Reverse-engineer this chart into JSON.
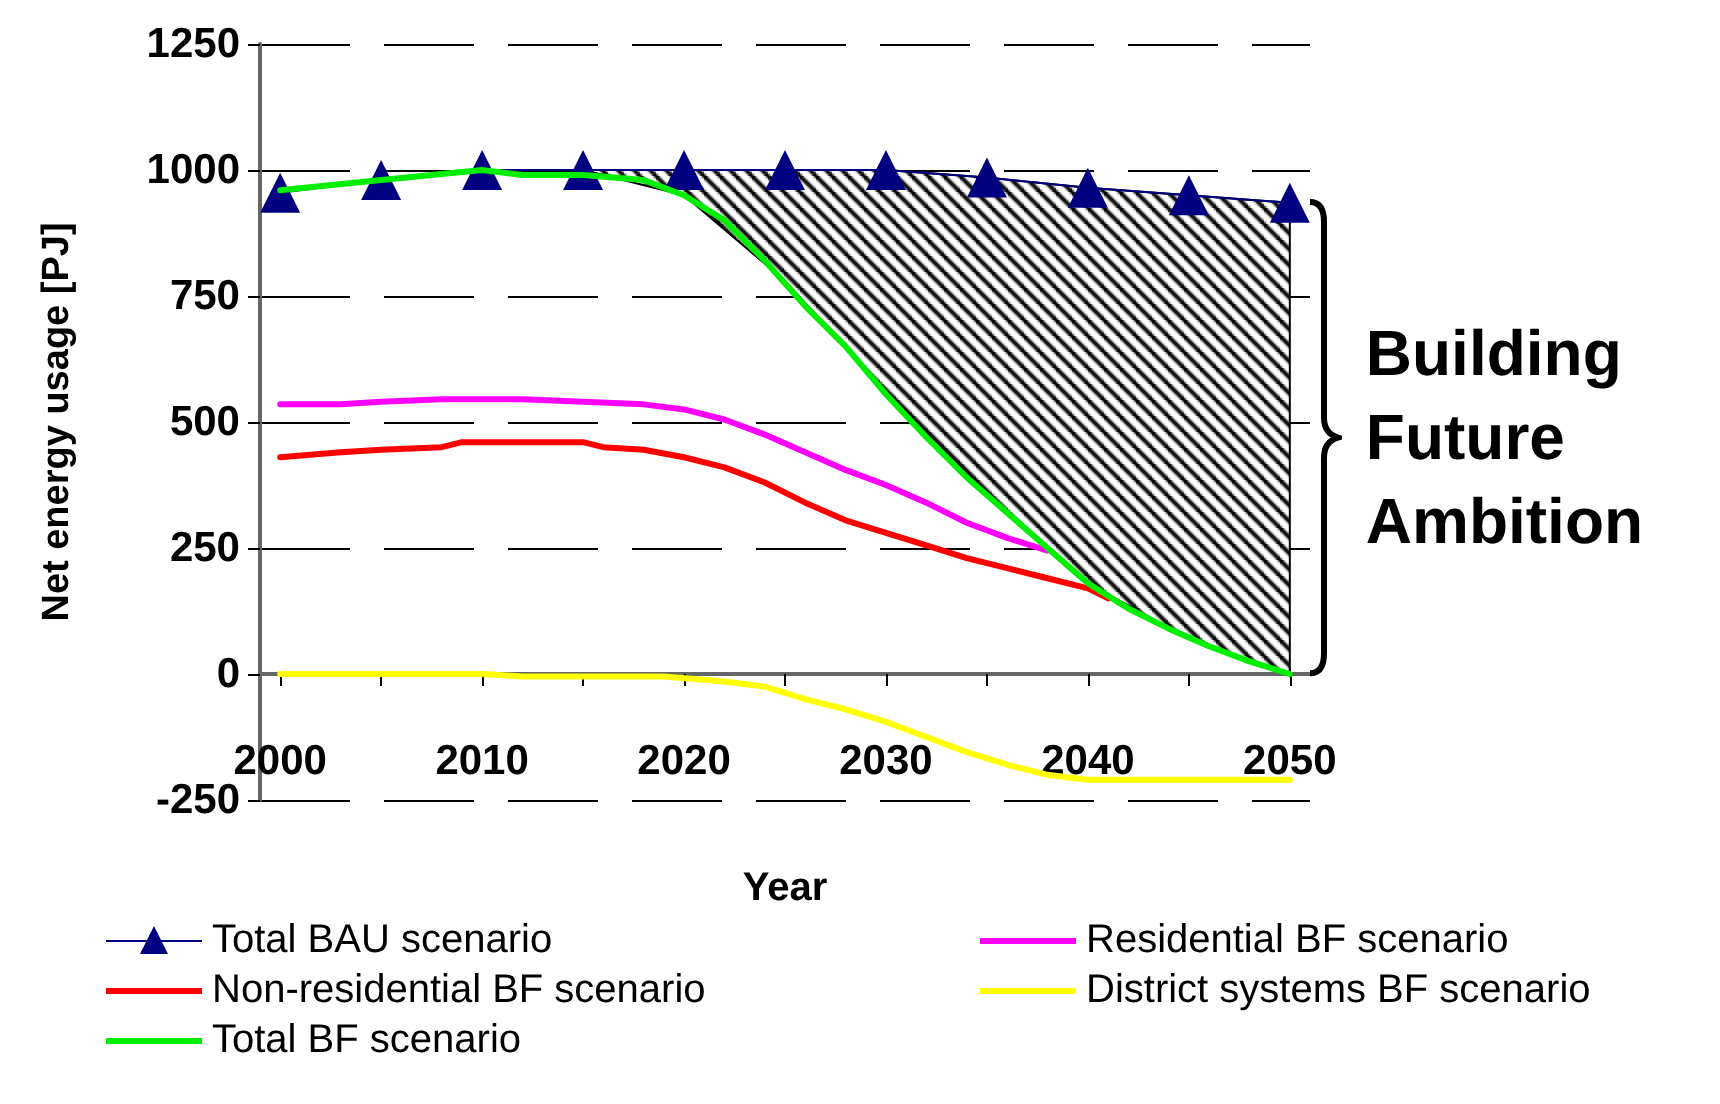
{
  "chart_data": {
    "type": "line",
    "xlabel": "Year",
    "ylabel": "Net energy usage [PJ]",
    "annotations": [
      {
        "text": "Building Future Ambition",
        "x": 2050,
        "y": 470
      }
    ],
    "xlim": [
      1999,
      2051
    ],
    "xticks": [
      2000,
      {
        "value": 2005,
        "label": null
      },
      2010,
      {
        "value": 2015,
        "label": null
      },
      2020,
      {
        "value": 2025,
        "label": null
      },
      2030,
      {
        "value": 2035,
        "label": null
      },
      2040,
      {
        "value": 2045,
        "label": null
      },
      2050
    ],
    "ylim": [
      -250,
      1250
    ],
    "yticks": [
      -250,
      0,
      250,
      500,
      750,
      1000,
      1250
    ],
    "grid": "y",
    "legend": "bottom",
    "line_style": "solid",
    "marker": "none",
    "series": [
      {
        "name": "Total BAU scenario",
        "color": "#000080",
        "marker": "triangle",
        "x": [
          2000,
          2005,
          2010,
          2015,
          2020,
          2025,
          2030,
          2035,
          2040,
          2045,
          2050
        ],
        "values": [
          955,
          980,
          1000,
          1000,
          1000,
          1000,
          1000,
          985,
          965,
          950,
          935
        ],
        "lower": [
          null,
          null,
          null,
          1000,
          950,
          780,
          560,
          360,
          180,
          70,
          0
        ],
        "upper": [
          null,
          null,
          null,
          1000,
          1000,
          1000,
          1000,
          985,
          965,
          950,
          935
        ]
      },
      {
        "name": "Residential BF scenario",
        "color": "#ff00ff",
        "x": [
          2000,
          2003,
          2005,
          2008,
          2012,
          2015,
          2018,
          2020,
          2022,
          2024,
          2026,
          2028,
          2030,
          2032,
          2034,
          2036,
          2038
        ],
        "values": [
          535,
          535,
          540,
          545,
          545,
          540,
          535,
          525,
          505,
          475,
          440,
          405,
          375,
          340,
          300,
          270,
          245
        ]
      },
      {
        "name": "Non-residential BF scenario",
        "color": "#ff0000",
        "x": [
          2000,
          2003,
          2005,
          2008,
          2009,
          2012,
          2015,
          2016,
          2018,
          2020,
          2022,
          2024,
          2026,
          2028,
          2030,
          2032,
          2034,
          2036,
          2038,
          2040,
          2041
        ],
        "values": [
          430,
          440,
          445,
          450,
          460,
          460,
          460,
          450,
          445,
          430,
          410,
          380,
          340,
          305,
          280,
          255,
          230,
          210,
          190,
          170,
          150
        ]
      },
      {
        "name": "District systems BF scenario",
        "color": "#ffff00",
        "x": [
          2000,
          2010,
          2012,
          2019,
          2022,
          2024,
          2026,
          2028,
          2030,
          2032,
          2034,
          2036,
          2038,
          2040,
          2045,
          2050
        ],
        "values": [
          0,
          0,
          -5,
          -5,
          -15,
          -25,
          -50,
          -70,
          -95,
          -125,
          -155,
          -180,
          -200,
          -210,
          -210,
          -210
        ]
      },
      {
        "name": "Total BF scenario",
        "color": "#00ee00",
        "x": [
          2000,
          2005,
          2010,
          2012,
          2015,
          2018,
          2020,
          2022,
          2024,
          2026,
          2028,
          2030,
          2032,
          2034,
          2036,
          2038,
          2040,
          2042,
          2044,
          2046,
          2048,
          2050
        ],
        "values": [
          960,
          980,
          1000,
          990,
          990,
          980,
          950,
          900,
          820,
          730,
          650,
          555,
          470,
          390,
          320,
          250,
          180,
          130,
          90,
          55,
          25,
          0
        ]
      }
    ]
  }
}
